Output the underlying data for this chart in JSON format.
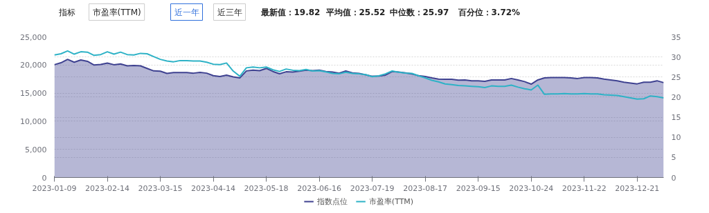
{
  "chart_data": {
    "type": "line",
    "annotations": [
      "指标",
      "市盈率(TTM)",
      "近一年",
      "近三年",
      "最新值：19.82",
      "平均值：25.52",
      "中位数：25.97",
      "百分位：3.72%"
    ],
    "categories": [
      "2023-01-09",
      null,
      null,
      null,
      null,
      null,
      null,
      null,
      "2023-02-14",
      null,
      null,
      null,
      null,
      null,
      null,
      null,
      "2023-03-15",
      null,
      null,
      null,
      null,
      null,
      null,
      null,
      "2023-04-14",
      null,
      null,
      null,
      null,
      null,
      null,
      null,
      "2023-05-18",
      null,
      null,
      null,
      null,
      null,
      null,
      null,
      "2023-06-16",
      null,
      null,
      null,
      null,
      null,
      null,
      null,
      "2023-07-19",
      null,
      null,
      null,
      null,
      null,
      null,
      null,
      "2023-08-17",
      null,
      null,
      null,
      null,
      null,
      null,
      null,
      "2023-09-15",
      null,
      null,
      null,
      null,
      null,
      null,
      null,
      "2023-10-24",
      null,
      null,
      null,
      null,
      null,
      null,
      null,
      "2023-11-22",
      null,
      null,
      null,
      null,
      null,
      null,
      null,
      "2023-12-21",
      null,
      null,
      null,
      null
    ],
    "series": [
      {
        "name": "指数点位",
        "type": "area",
        "color": "#3e4190",
        "values": [
          20050,
          20400,
          21000,
          20500,
          20900,
          20650,
          20000,
          20100,
          20350,
          20050,
          20200,
          19850,
          19900,
          19850,
          19400,
          18950,
          18900,
          18500,
          18650,
          18650,
          18650,
          18550,
          18700,
          18550,
          18100,
          17950,
          18200,
          17900,
          17700,
          18950,
          19100,
          19000,
          19400,
          18850,
          18450,
          18800,
          18750,
          18900,
          19100,
          19000,
          19100,
          18850,
          18750,
          18550,
          18950,
          18600,
          18500,
          18250,
          18000,
          18050,
          18200,
          18830,
          18750,
          18600,
          18400,
          18100,
          17950,
          17700,
          17500,
          17450,
          17450,
          17300,
          17350,
          17200,
          17200,
          17100,
          17350,
          17350,
          17350,
          17600,
          17350,
          17050,
          16600,
          17350,
          17700,
          17760,
          17760,
          17760,
          17700,
          17600,
          17760,
          17760,
          17700,
          17500,
          17350,
          17200,
          16950,
          16800,
          16650,
          16950,
          16950,
          17200,
          16870
        ]
      },
      {
        "name": "市盈率(TTM)",
        "type": "line",
        "axis": "y2",
        "color": "#2db2c6",
        "values": [
          30.5,
          30.8,
          31.5,
          30.7,
          31.3,
          31.2,
          30.4,
          30.6,
          31.3,
          30.7,
          31.2,
          30.6,
          30.5,
          30.9,
          30.8,
          30.1,
          29.4,
          29.0,
          28.8,
          29.1,
          29.1,
          29.0,
          29.0,
          28.7,
          28.2,
          28.1,
          28.5,
          26.5,
          25.2,
          27.3,
          27.5,
          27.3,
          27.5,
          26.8,
          26.4,
          27.0,
          26.7,
          26.6,
          26.9,
          26.5,
          26.6,
          26.3,
          25.9,
          25.8,
          26.2,
          25.9,
          25.8,
          25.6,
          25.1,
          25.3,
          25.8,
          26.5,
          26.2,
          26.0,
          25.9,
          25.3,
          24.8,
          24.2,
          23.8,
          23.3,
          23.1,
          22.9,
          22.8,
          22.7,
          22.6,
          22.4,
          22.8,
          22.7,
          22.7,
          23.0,
          22.5,
          22.1,
          21.8,
          23.0,
          20.7,
          20.8,
          20.8,
          20.9,
          20.8,
          20.8,
          20.9,
          20.8,
          20.8,
          20.6,
          20.5,
          20.4,
          20.1,
          19.8,
          19.5,
          19.6,
          20.3,
          20.1,
          19.82
        ]
      }
    ],
    "ylim": [
      0,
      25000
    ],
    "yticks": [
      0,
      {
        "value": 5000,
        "label": "5,000"
      },
      {
        "value": 10000,
        "label": "10,000"
      },
      {
        "value": 15000,
        "label": "15,000"
      },
      {
        "value": 20000,
        "label": "20,000"
      },
      {
        "value": 25000,
        "label": "25,000"
      }
    ],
    "y2lim": [
      0,
      35
    ],
    "y2ticks": [
      0,
      5,
      10,
      15,
      20,
      25,
      30,
      35
    ],
    "grid": "y",
    "legend": "bottom",
    "line_style": "solid",
    "marker": "none"
  }
}
